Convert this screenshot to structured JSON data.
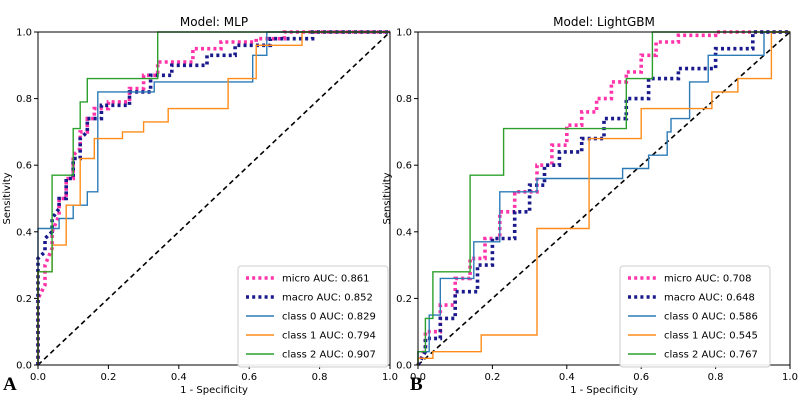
{
  "chart_data": [
    {
      "type": "line",
      "panel_label": "A",
      "title": "Model: MLP",
      "xlabel": "1 - Specificity",
      "ylabel": "Sensitivity",
      "xlim": [
        0,
        1
      ],
      "ylim": [
        0,
        1
      ],
      "xticks": [
        "0.0",
        "0.2",
        "0.4",
        "0.6",
        "0.8",
        "1.0"
      ],
      "yticks": [
        "0.0",
        "0.2",
        "0.4",
        "0.6",
        "0.8",
        "1.0"
      ],
      "legend_position": "lower-right",
      "diagonal": {
        "style": "dashed",
        "color": "#000000"
      },
      "series": [
        {
          "name": "micro AUC: 0.861",
          "color": "#ff33aa",
          "style": "dotted",
          "x": [
            0,
            0,
            0.02,
            0.02,
            0.04,
            0.04,
            0.06,
            0.06,
            0.08,
            0.08,
            0.1,
            0.1,
            0.12,
            0.12,
            0.14,
            0.14,
            0.16,
            0.16,
            0.2,
            0.2,
            0.26,
            0.26,
            0.3,
            0.3,
            0.34,
            0.34,
            0.44,
            0.44,
            0.52,
            0.52,
            0.62,
            0.62,
            0.7,
            0.7,
            1
          ],
          "y": [
            0,
            0.2,
            0.24,
            0.3,
            0.35,
            0.4,
            0.45,
            0.5,
            0.5,
            0.56,
            0.56,
            0.63,
            0.65,
            0.7,
            0.7,
            0.74,
            0.74,
            0.77,
            0.77,
            0.79,
            0.79,
            0.83,
            0.83,
            0.87,
            0.87,
            0.91,
            0.91,
            0.95,
            0.95,
            0.97,
            0.97,
            0.98,
            0.98,
            1,
            1
          ]
        },
        {
          "name": "macro AUC: 0.852",
          "color": "#1a1a8c",
          "style": "dotted",
          "x": [
            0,
            0,
            0.02,
            0.02,
            0.04,
            0.04,
            0.06,
            0.06,
            0.08,
            0.08,
            0.1,
            0.1,
            0.12,
            0.12,
            0.14,
            0.14,
            0.18,
            0.18,
            0.26,
            0.26,
            0.32,
            0.32,
            0.38,
            0.38,
            0.48,
            0.48,
            0.56,
            0.56,
            0.66,
            0.66,
            0.78,
            0.78,
            1
          ],
          "y": [
            0,
            0.32,
            0.34,
            0.38,
            0.4,
            0.44,
            0.47,
            0.5,
            0.5,
            0.56,
            0.56,
            0.62,
            0.62,
            0.68,
            0.7,
            0.74,
            0.74,
            0.78,
            0.78,
            0.82,
            0.82,
            0.87,
            0.87,
            0.9,
            0.9,
            0.93,
            0.93,
            0.96,
            0.96,
            0.98,
            0.98,
            1,
            1
          ]
        },
        {
          "name": "class 0 AUC: 0.829",
          "color": "#2c7bb6",
          "style": "solid",
          "x": [
            0,
            0,
            0.06,
            0.06,
            0.1,
            0.1,
            0.14,
            0.14,
            0.17,
            0.17,
            0.33,
            0.33,
            0.61,
            0.61,
            0.65,
            0.65,
            1
          ],
          "y": [
            0,
            0.41,
            0.41,
            0.44,
            0.44,
            0.48,
            0.48,
            0.52,
            0.52,
            0.82,
            0.82,
            0.85,
            0.85,
            0.93,
            0.93,
            1,
            1
          ]
        },
        {
          "name": "class 1 AUC: 0.794",
          "color": "#ff8c1a",
          "style": "solid",
          "x": [
            0,
            0,
            0.04,
            0.04,
            0.08,
            0.08,
            0.12,
            0.12,
            0.16,
            0.16,
            0.24,
            0.24,
            0.3,
            0.3,
            0.37,
            0.37,
            0.54,
            0.54,
            0.62,
            0.62,
            0.75,
            0.75,
            1
          ],
          "y": [
            0,
            0.28,
            0.28,
            0.36,
            0.36,
            0.48,
            0.48,
            0.62,
            0.62,
            0.68,
            0.68,
            0.7,
            0.7,
            0.73,
            0.73,
            0.77,
            0.77,
            0.86,
            0.86,
            0.96,
            0.96,
            1,
            1
          ]
        },
        {
          "name": "class 2 AUC: 0.907",
          "color": "#2ca02c",
          "style": "solid",
          "x": [
            0,
            0,
            0.04,
            0.04,
            0.1,
            0.1,
            0.12,
            0.12,
            0.14,
            0.14,
            0.24,
            0.24,
            0.34,
            0.34,
            1
          ],
          "y": [
            0,
            0.28,
            0.28,
            0.57,
            0.57,
            0.71,
            0.71,
            0.79,
            0.79,
            0.86,
            0.86,
            0.86,
            0.86,
            1,
            1
          ]
        }
      ]
    },
    {
      "type": "line",
      "panel_label": "B",
      "title": "Model: LightGBM",
      "xlabel": "1 - Specificity",
      "ylabel": "Sensitivity",
      "xlim": [
        0,
        1
      ],
      "ylim": [
        0,
        1
      ],
      "xticks": [
        "0.0",
        "0.2",
        "0.4",
        "0.6",
        "0.8",
        "1.0"
      ],
      "yticks": [
        "0.0",
        "0.2",
        "0.4",
        "0.6",
        "0.8",
        "1.0"
      ],
      "legend_position": "lower-right",
      "diagonal": {
        "style": "dashed",
        "color": "#000000"
      },
      "series": [
        {
          "name": "micro AUC: 0.708",
          "color": "#ff33aa",
          "style": "dotted",
          "x": [
            0,
            0.02,
            0.02,
            0.06,
            0.06,
            0.1,
            0.1,
            0.14,
            0.14,
            0.18,
            0.18,
            0.22,
            0.22,
            0.26,
            0.26,
            0.32,
            0.32,
            0.36,
            0.36,
            0.4,
            0.4,
            0.44,
            0.44,
            0.48,
            0.48,
            0.52,
            0.52,
            0.56,
            0.56,
            0.6,
            0.6,
            0.64,
            0.64,
            0.7,
            0.7,
            0.8,
            0.8,
            1
          ],
          "y": [
            0,
            0.05,
            0.1,
            0.1,
            0.18,
            0.18,
            0.26,
            0.26,
            0.32,
            0.32,
            0.38,
            0.38,
            0.46,
            0.46,
            0.52,
            0.52,
            0.6,
            0.6,
            0.66,
            0.66,
            0.72,
            0.72,
            0.76,
            0.76,
            0.8,
            0.8,
            0.85,
            0.85,
            0.88,
            0.88,
            0.93,
            0.93,
            0.97,
            0.97,
            0.99,
            0.99,
            1,
            1
          ]
        },
        {
          "name": "macro AUC: 0.648",
          "color": "#1a1a8c",
          "style": "dotted",
          "x": [
            0,
            0.02,
            0.02,
            0.06,
            0.06,
            0.1,
            0.1,
            0.16,
            0.16,
            0.2,
            0.2,
            0.26,
            0.26,
            0.3,
            0.3,
            0.34,
            0.34,
            0.38,
            0.38,
            0.44,
            0.44,
            0.5,
            0.5,
            0.56,
            0.56,
            0.62,
            0.62,
            0.7,
            0.7,
            0.8,
            0.8,
            0.9,
            0.9,
            1
          ],
          "y": [
            0,
            0.04,
            0.08,
            0.08,
            0.14,
            0.14,
            0.22,
            0.22,
            0.3,
            0.3,
            0.38,
            0.38,
            0.46,
            0.46,
            0.54,
            0.54,
            0.6,
            0.6,
            0.64,
            0.64,
            0.68,
            0.68,
            0.74,
            0.74,
            0.8,
            0.8,
            0.86,
            0.86,
            0.89,
            0.89,
            0.95,
            0.95,
            1,
            1
          ]
        },
        {
          "name": "class 0 AUC: 0.586",
          "color": "#2c7bb6",
          "style": "solid",
          "x": [
            0,
            0,
            0.03,
            0.03,
            0.06,
            0.06,
            0.15,
            0.15,
            0.22,
            0.22,
            0.25,
            0.25,
            0.32,
            0.32,
            0.55,
            0.55,
            0.62,
            0.62,
            0.67,
            0.67,
            0.68,
            0.68,
            0.73,
            0.73,
            0.78,
            0.78,
            0.93,
            0.93,
            1
          ],
          "y": [
            0,
            0.04,
            0.04,
            0.15,
            0.15,
            0.26,
            0.26,
            0.37,
            0.37,
            0.52,
            0.52,
            0.52,
            0.52,
            0.56,
            0.56,
            0.59,
            0.59,
            0.63,
            0.63,
            0.7,
            0.7,
            0.74,
            0.74,
            0.85,
            0.85,
            0.93,
            0.93,
            1,
            1
          ]
        },
        {
          "name": "class 1 AUC: 0.545",
          "color": "#ff8c1a",
          "style": "solid",
          "x": [
            0,
            0,
            0.04,
            0.04,
            0.17,
            0.17,
            0.32,
            0.32,
            0.46,
            0.46,
            0.6,
            0.6,
            0.79,
            0.79,
            0.86,
            0.86,
            0.95,
            0.95,
            1
          ],
          "y": [
            0,
            0.02,
            0.02,
            0.04,
            0.04,
            0.09,
            0.09,
            0.41,
            0.41,
            0.68,
            0.68,
            0.77,
            0.77,
            0.82,
            0.82,
            0.86,
            0.86,
            1,
            1
          ]
        },
        {
          "name": "class 2 AUC: 0.767",
          "color": "#2ca02c",
          "style": "solid",
          "x": [
            0,
            0,
            0.02,
            0.02,
            0.04,
            0.04,
            0.12,
            0.12,
            0.14,
            0.14,
            0.23,
            0.23,
            0.32,
            0.32,
            0.56,
            0.56,
            0.63,
            0.63,
            1
          ],
          "y": [
            0,
            0.04,
            0.04,
            0.14,
            0.14,
            0.28,
            0.28,
            0.28,
            0.28,
            0.57,
            0.57,
            0.71,
            0.71,
            0.71,
            0.71,
            0.86,
            0.86,
            1,
            1
          ]
        }
      ]
    }
  ]
}
